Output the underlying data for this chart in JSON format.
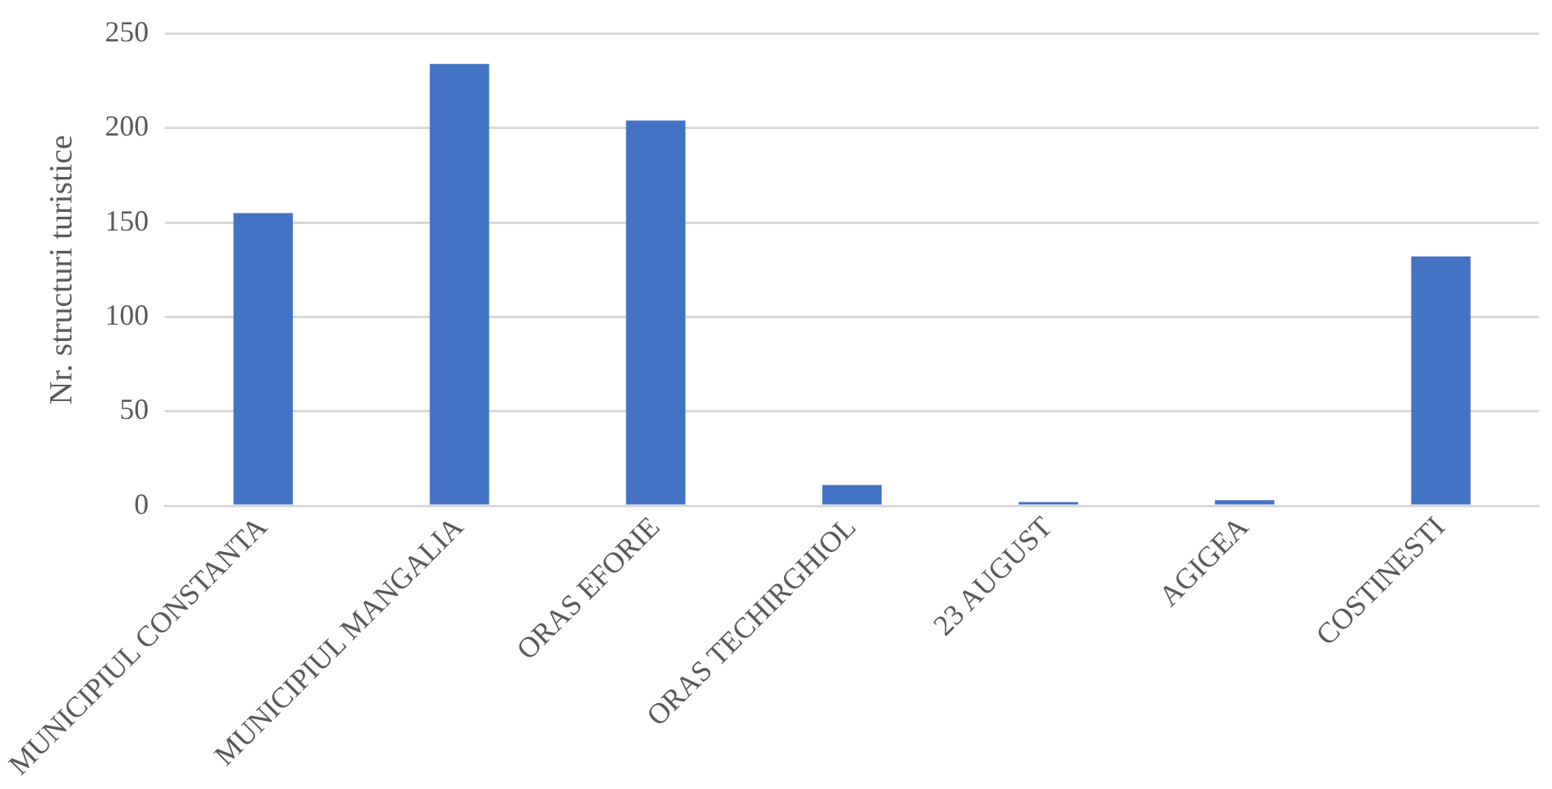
{
  "chart_data": {
    "type": "bar",
    "ylabel": "Nr. structuri turistice",
    "categories": [
      "MUNICIPIUL CONSTANTA",
      "MUNICIPIUL MANGALIA",
      "ORAS EFORIE",
      "ORAS TECHIRGHIOL",
      "23 AUGUST",
      "AGIGEA",
      "COSTINESTI"
    ],
    "values": [
      155,
      234,
      204,
      11,
      2,
      3,
      132
    ],
    "color": "#4472c4",
    "ylim": [
      0,
      250
    ],
    "yticks": [
      0,
      50,
      100,
      150,
      200,
      250
    ],
    "grid": "y",
    "legend": false
  }
}
